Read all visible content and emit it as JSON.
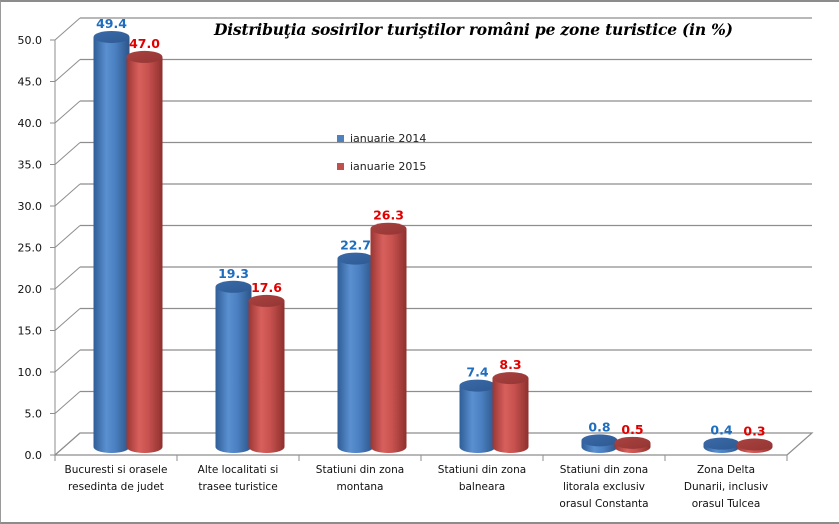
{
  "chart_data": {
    "type": "bar",
    "style": "3d-cylinder",
    "title": "Distribuţia sosirilor turiştilor români pe zone turistice (in %)",
    "xlabel": "",
    "ylabel": "",
    "ylim": [
      0,
      50
    ],
    "ytick_step": 5,
    "ytick_labels": [
      "0.0",
      "5.0",
      "10.0",
      "15.0",
      "20.0",
      "25.0",
      "30.0",
      "35.0",
      "40.0",
      "45.0",
      "50.0"
    ],
    "grid": true,
    "legend_position": "center-left",
    "categories": [
      [
        "Bucuresti si orasele",
        "resedinta de judet"
      ],
      [
        "Alte localitati si",
        "trasee turistice"
      ],
      [
        "Statiuni din zona",
        "montana"
      ],
      [
        "Statiuni din zona",
        "balneara"
      ],
      [
        "Statiuni din zona",
        "litorala exclusiv",
        "orasul Constanta"
      ],
      [
        "Zona Delta",
        "Dunarii, inclusiv",
        "orasul Tulcea"
      ]
    ],
    "series": [
      {
        "name": "ianuarie 2014",
        "color": "#4F81BD",
        "label_color": "#1F6EBE",
        "values": [
          49.4,
          19.3,
          22.7,
          7.4,
          0.8,
          0.4
        ],
        "labels": [
          "49.4",
          "19.3",
          "22.7",
          "7.4",
          "0.8",
          "0.4"
        ]
      },
      {
        "name": "ianuarie 2015",
        "color": "#C0504D",
        "label_color": "#E00000",
        "values": [
          47.0,
          17.6,
          26.3,
          8.3,
          0.5,
          0.3
        ],
        "labels": [
          "47.0",
          "17.6",
          "26.3",
          "8.3",
          "0.5",
          "0.3"
        ]
      }
    ]
  }
}
